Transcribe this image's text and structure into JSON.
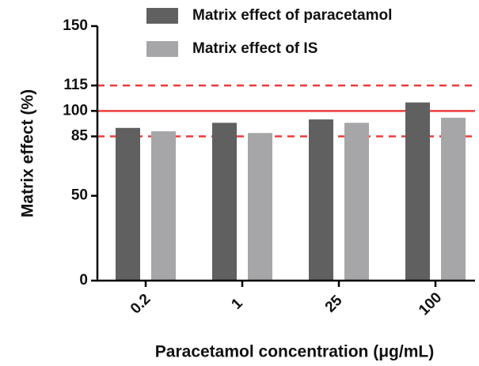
{
  "chart_data": {
    "type": "bar",
    "x_label": "Paracetamol concentration (μg/mL)",
    "y_label": "Matrix effect (%)",
    "categories": [
      "0.2",
      "1",
      "25",
      "100"
    ],
    "series": [
      {
        "name": "Matrix effect of paracetamol",
        "color": "#606060",
        "values": [
          90,
          93,
          95,
          105
        ]
      },
      {
        "name": "Matrix effect of IS",
        "color": "#a6a6a8",
        "values": [
          88,
          87,
          93,
          96
        ]
      }
    ],
    "ylim": [
      0,
      150
    ],
    "yticks": [
      0,
      50,
      85,
      100,
      115,
      150
    ],
    "reference_lines": [
      {
        "value": 115,
        "style": "dashed",
        "color": "#ee3b3b"
      },
      {
        "value": 100,
        "style": "solid",
        "color": "#ee3b3b"
      },
      {
        "value": 85,
        "style": "dashed",
        "color": "#ee3b3b"
      }
    ]
  }
}
